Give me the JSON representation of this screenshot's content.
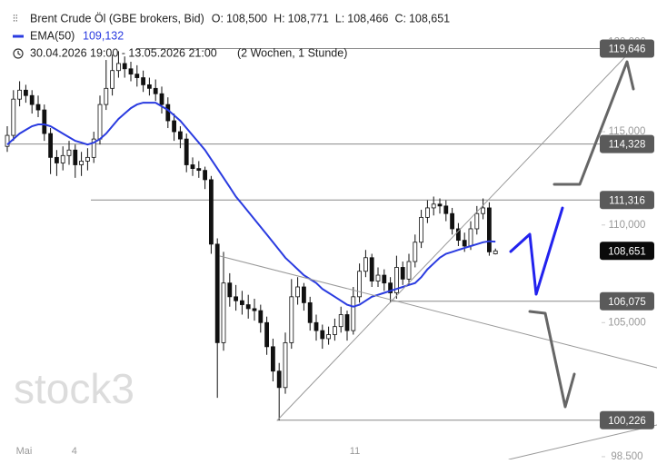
{
  "chart_data": {
    "type": "candlestick",
    "title": "Brent Crude Öl (GBE brokers, Bid)",
    "header_ohlc": [
      {
        "key": "O:",
        "text": "108,500"
      },
      {
        "key": "H:",
        "text": "108,771"
      },
      {
        "key": "L:",
        "text": "108,466"
      },
      {
        "key": "C:",
        "text": "108,651"
      }
    ],
    "date_range": "30.04.2026 19:00 - 13.05.2026 21:00",
    "period": "(2 Wochen, 1 Stunde)",
    "watermark": "stock3",
    "log_scale": true,
    "grid": false,
    "ylim": [
      98.37,
      122.45
    ],
    "yticks": [
      {
        "value": 120,
        "label": "120,000"
      },
      {
        "value": 115,
        "label": "115,000"
      },
      {
        "value": 110,
        "label": "110,000"
      },
      {
        "value": 105,
        "label": "105,000"
      },
      {
        "value": 98.5,
        "label": "98,500"
      }
    ],
    "levels": [
      {
        "value": 119.646,
        "label": "119,646"
      },
      {
        "value": 114.328,
        "label": "114,328"
      },
      {
        "value": 111.316,
        "label": "111,316"
      },
      {
        "value": 106.075,
        "label": "106,075"
      },
      {
        "value": 100.226,
        "label": "100,226"
      }
    ],
    "last_price": {
      "value": 108.651,
      "label": "108,651"
    },
    "categories": [
      null,
      null,
      "Mai",
      null,
      null,
      null,
      null,
      null,
      null,
      null,
      null,
      "4",
      null,
      null,
      null,
      null,
      null,
      null,
      null,
      null,
      null,
      null,
      null,
      null,
      null,
      null,
      null,
      null,
      null,
      null,
      null,
      null,
      null,
      null,
      null,
      null,
      null,
      null,
      null,
      null,
      null,
      null,
      null,
      null,
      null,
      null,
      null,
      null,
      null,
      null,
      null,
      null,
      null,
      null,
      null,
      null,
      "11",
      null,
      null,
      null,
      null,
      null,
      null,
      null,
      null,
      null,
      null,
      null,
      null,
      null,
      null,
      null,
      null,
      null,
      null,
      null,
      null,
      null,
      null,
      null
    ],
    "ohlc": [
      [
        114.2,
        115.3,
        113.9,
        114.8
      ],
      [
        114.8,
        117.3,
        114.5,
        116.8
      ],
      [
        116.8,
        117.8,
        116.4,
        117.3
      ],
      [
        117.3,
        117.6,
        116.6,
        117.0
      ],
      [
        117.0,
        117.3,
        116.0,
        116.5
      ],
      [
        116.5,
        117.0,
        115.8,
        116.2
      ],
      [
        116.2,
        116.5,
        114.5,
        114.9
      ],
      [
        114.9,
        115.2,
        112.7,
        113.6
      ],
      [
        113.6,
        114.0,
        112.6,
        113.3
      ],
      [
        113.3,
        114.2,
        112.9,
        113.7
      ],
      [
        113.7,
        114.5,
        113.2,
        114.0
      ],
      [
        114.0,
        114.3,
        112.5,
        113.2
      ],
      [
        113.2,
        113.9,
        112.6,
        113.4
      ],
      [
        113.4,
        114.1,
        112.9,
        113.6
      ],
      [
        113.6,
        115.0,
        113.3,
        114.6
      ],
      [
        114.6,
        117.0,
        114.3,
        116.5
      ],
      [
        116.5,
        119.0,
        116.2,
        117.4
      ],
      [
        117.4,
        119.3,
        117.0,
        118.4
      ],
      [
        118.4,
        119.5,
        118.0,
        118.8
      ],
      [
        118.8,
        119.2,
        118.0,
        118.5
      ],
      [
        118.5,
        118.9,
        117.8,
        118.2
      ],
      [
        118.2,
        118.7,
        117.5,
        118.0
      ],
      [
        118.0,
        118.4,
        117.2,
        117.6
      ],
      [
        117.6,
        118.0,
        117.0,
        117.4
      ],
      [
        117.4,
        117.9,
        116.7,
        117.1
      ],
      [
        117.1,
        117.5,
        116.0,
        116.5
      ],
      [
        116.5,
        116.9,
        115.2,
        115.6
      ],
      [
        115.6,
        116.0,
        114.5,
        115.0
      ],
      [
        115.0,
        115.3,
        114.1,
        114.6
      ],
      [
        114.6,
        114.9,
        112.8,
        113.2
      ],
      [
        113.2,
        113.6,
        112.6,
        113.0
      ],
      [
        113.0,
        113.4,
        112.5,
        112.9
      ],
      [
        112.9,
        113.1,
        111.9,
        112.4
      ],
      [
        112.4,
        112.6,
        108.5,
        109.0
      ],
      [
        109.0,
        109.3,
        101.3,
        104.0
      ],
      [
        104.0,
        108.6,
        103.6,
        107.0
      ],
      [
        107.0,
        107.5,
        105.8,
        106.3
      ],
      [
        106.3,
        106.9,
        105.6,
        106.1
      ],
      [
        106.1,
        106.6,
        105.4,
        105.9
      ],
      [
        105.9,
        106.4,
        105.2,
        105.7
      ],
      [
        105.7,
        106.2,
        105.1,
        105.6
      ],
      [
        105.6,
        105.9,
        104.5,
        105.0
      ],
      [
        105.0,
        105.3,
        103.4,
        103.8
      ],
      [
        103.8,
        104.2,
        102.1,
        102.6
      ],
      [
        102.6,
        103.0,
        100.226,
        101.8
      ],
      [
        101.8,
        104.5,
        101.5,
        104.0
      ],
      [
        104.0,
        107.2,
        103.7,
        106.3
      ],
      [
        106.3,
        107.3,
        105.9,
        106.8
      ],
      [
        106.8,
        107.0,
        105.6,
        106.0
      ],
      [
        106.0,
        106.3,
        104.6,
        105.0
      ],
      [
        105.0,
        105.4,
        104.1,
        104.6
      ],
      [
        104.6,
        104.9,
        103.7,
        104.2
      ],
      [
        104.2,
        104.8,
        103.9,
        104.4
      ],
      [
        104.4,
        105.2,
        104.1,
        104.8
      ],
      [
        104.8,
        105.8,
        104.5,
        105.4
      ],
      [
        105.4,
        105.6,
        104.1,
        104.6
      ],
      [
        104.6,
        106.8,
        104.4,
        106.3
      ],
      [
        106.3,
        108.0,
        106.0,
        107.6
      ],
      [
        107.6,
        108.7,
        107.3,
        108.3
      ],
      [
        108.3,
        108.5,
        106.8,
        107.1
      ],
      [
        107.1,
        107.8,
        106.8,
        107.4
      ],
      [
        107.4,
        107.7,
        106.6,
        107.0
      ],
      [
        107.0,
        107.3,
        106.0,
        106.5
      ],
      [
        106.5,
        108.4,
        106.2,
        107.8
      ],
      [
        107.8,
        108.1,
        106.9,
        107.2
      ],
      [
        107.2,
        108.5,
        106.9,
        108.1
      ],
      [
        108.1,
        109.5,
        107.8,
        109.1
      ],
      [
        109.1,
        110.8,
        108.8,
        110.4
      ],
      [
        110.4,
        111.3,
        110.1,
        110.9
      ],
      [
        110.9,
        111.5,
        110.5,
        111.1
      ],
      [
        111.1,
        111.4,
        110.6,
        111.0
      ],
      [
        111.0,
        111.3,
        110.2,
        110.6
      ],
      [
        110.6,
        110.9,
        109.5,
        109.8
      ],
      [
        109.8,
        110.1,
        108.9,
        109.2
      ],
      [
        109.2,
        109.6,
        108.6,
        108.9
      ],
      [
        108.9,
        110.2,
        108.7,
        109.8
      ],
      [
        109.8,
        111.0,
        109.5,
        110.6
      ],
      [
        110.6,
        111.4,
        110.3,
        110.9
      ],
      [
        110.9,
        111.2,
        108.4,
        108.6
      ],
      [
        108.5,
        108.771,
        108.466,
        108.651
      ]
    ],
    "series": [
      {
        "name": "EMA(50)",
        "color": "#2a3be0",
        "value_label": "109,132",
        "values": [
          114.3,
          114.6,
          114.9,
          115.1,
          115.3,
          115.4,
          115.4,
          115.3,
          115.1,
          114.9,
          114.7,
          114.5,
          114.4,
          114.3,
          114.4,
          114.6,
          114.9,
          115.3,
          115.7,
          116.0,
          116.3,
          116.5,
          116.6,
          116.6,
          116.6,
          116.4,
          116.2,
          115.9,
          115.6,
          115.2,
          114.8,
          114.4,
          114.0,
          113.5,
          113.0,
          112.5,
          112.0,
          111.5,
          111.1,
          110.7,
          110.3,
          109.9,
          109.5,
          109.1,
          108.7,
          108.3,
          108.0,
          107.7,
          107.4,
          107.2,
          107.0,
          106.7,
          106.5,
          106.3,
          106.1,
          105.9,
          105.8,
          105.9,
          106.1,
          106.3,
          106.4,
          106.5,
          106.6,
          106.7,
          106.8,
          106.9,
          107.0,
          107.3,
          107.7,
          108.0,
          108.3,
          108.5,
          108.6,
          108.7,
          108.8,
          108.9,
          109.0,
          109.1,
          109.15,
          109.132
        ]
      }
    ]
  }
}
